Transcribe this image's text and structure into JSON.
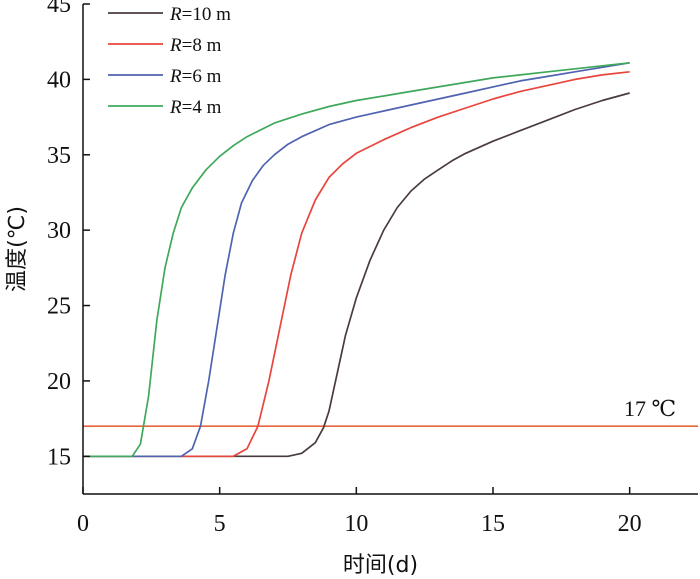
{
  "chart_data": {
    "type": "line",
    "xlabel": "时间(d)",
    "ylabel": "温度(℃)",
    "xlim": [
      0,
      22.5
    ],
    "ylim": [
      12.5,
      45
    ],
    "xticks": [
      0,
      5,
      10,
      15,
      20
    ],
    "yticks": [
      15,
      20,
      25,
      30,
      35,
      40,
      45
    ],
    "grid": false,
    "legend_position": "top-left",
    "series": [
      {
        "name": "R=10 m",
        "name_italic": "R",
        "name_rest": "=10 m",
        "color": "#4a3c3c",
        "x": [
          0,
          7.5,
          8.0,
          8.5,
          8.8,
          9.0,
          9.3,
          9.6,
          10.0,
          10.5,
          11.0,
          11.5,
          12.0,
          12.5,
          13.0,
          13.5,
          14.0,
          15.0,
          16.0,
          17.0,
          18.0,
          19.0,
          20.0
        ],
        "y": [
          15.0,
          15.0,
          15.2,
          15.9,
          16.9,
          18.0,
          20.5,
          23.0,
          25.5,
          28.0,
          30.0,
          31.5,
          32.6,
          33.4,
          34.0,
          34.6,
          35.1,
          35.9,
          36.6,
          37.3,
          38.0,
          38.6,
          39.1
        ]
      },
      {
        "name": "R=8 m",
        "name_italic": "R",
        "name_rest": "=8 m",
        "color": "#e8453c",
        "x": [
          0,
          5.5,
          6.0,
          6.4,
          6.8,
          7.2,
          7.6,
          8.0,
          8.5,
          9.0,
          9.5,
          10.0,
          11.0,
          12.0,
          13.0,
          14.0,
          15.0,
          16.0,
          17.0,
          18.0,
          19.0,
          20.0
        ],
        "y": [
          15.0,
          15.0,
          15.5,
          17.0,
          20.0,
          23.5,
          27.0,
          29.8,
          32.0,
          33.5,
          34.4,
          35.1,
          36.0,
          36.8,
          37.5,
          38.1,
          38.7,
          39.2,
          39.6,
          40.0,
          40.3,
          40.5
        ]
      },
      {
        "name": "R=6 m",
        "name_italic": "R",
        "name_rest": "=6 m",
        "color": "#4f63b0",
        "x": [
          0,
          3.6,
          4.0,
          4.3,
          4.6,
          4.9,
          5.2,
          5.5,
          5.8,
          6.2,
          6.6,
          7.0,
          7.5,
          8.0,
          9.0,
          10.0,
          11.0,
          12.0,
          13.0,
          14.0,
          15.0,
          16.0,
          17.0,
          18.0,
          19.0,
          20.0
        ],
        "y": [
          15.0,
          15.0,
          15.5,
          17.0,
          20.0,
          23.5,
          27.0,
          29.8,
          31.8,
          33.3,
          34.3,
          35.0,
          35.7,
          36.2,
          37.0,
          37.5,
          37.9,
          38.3,
          38.7,
          39.1,
          39.5,
          39.9,
          40.2,
          40.5,
          40.8,
          41.1
        ]
      },
      {
        "name": "R=4 m",
        "name_italic": "R",
        "name_rest": "=4 m",
        "color": "#3fa85a",
        "x": [
          0,
          1.8,
          2.1,
          2.4,
          2.7,
          3.0,
          3.3,
          3.6,
          4.0,
          4.5,
          5.0,
          5.5,
          6.0,
          7.0,
          8.0,
          9.0,
          10.0,
          11.0,
          12.0,
          13.0,
          14.0,
          15.0,
          16.0,
          17.0,
          18.0,
          19.0,
          20.0
        ],
        "y": [
          15.0,
          15.0,
          15.8,
          19.0,
          24.0,
          27.5,
          29.8,
          31.5,
          32.8,
          34.0,
          34.9,
          35.6,
          36.2,
          37.1,
          37.7,
          38.2,
          38.6,
          38.9,
          39.2,
          39.5,
          39.8,
          40.1,
          40.3,
          40.5,
          40.7,
          40.9,
          41.1
        ]
      }
    ],
    "reference_line": {
      "y": 17,
      "label": "17 ℃",
      "color": "#e8663c"
    }
  }
}
